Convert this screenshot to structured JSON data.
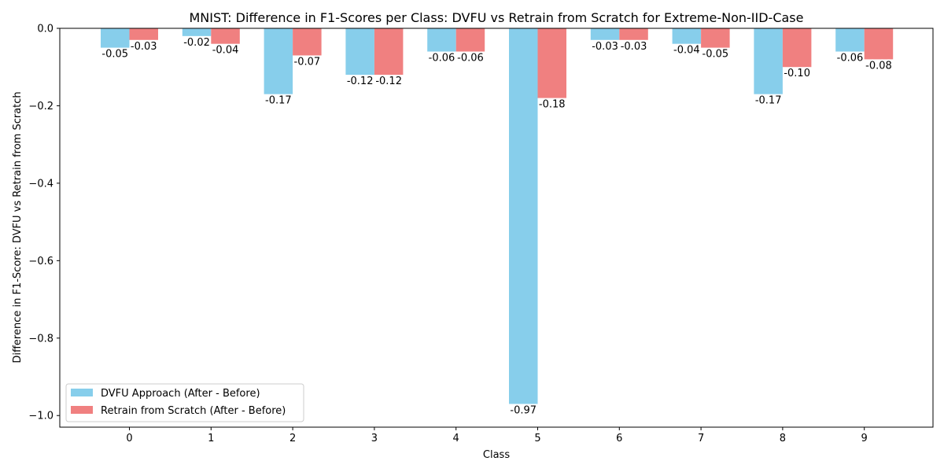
{
  "chart_data": {
    "type": "bar",
    "title": "MNIST: Difference in F1-Scores per Class: DVFU vs Retrain from Scratch for Extreme-Non-IID-Case",
    "xlabel": "Class",
    "ylabel": "Difference in F1-Score: DVFU vs Retrain from Scratch",
    "categories": [
      "0",
      "1",
      "2",
      "3",
      "4",
      "5",
      "6",
      "7",
      "8",
      "9"
    ],
    "ylim": [
      -1.03,
      0.0
    ],
    "yticks": [
      0.0,
      -0.2,
      -0.4,
      -0.6,
      -0.8,
      -1.0
    ],
    "ytick_labels": [
      "0.0",
      "−0.2",
      "−0.4",
      "−0.6",
      "−0.8",
      "−1.0"
    ],
    "grid": false,
    "legend_position": "lower-left",
    "series": [
      {
        "name": "DVFU Approach (After - Before)",
        "color": "#87ceeb",
        "values": [
          -0.05,
          -0.02,
          -0.17,
          -0.12,
          -0.06,
          -0.97,
          -0.03,
          -0.04,
          -0.17,
          -0.06
        ],
        "labels": [
          "-0.05",
          "-0.02",
          "-0.17",
          "-0.12",
          "-0.06",
          "-0.97",
          "-0.03",
          "-0.04",
          "-0.17",
          "-0.06"
        ]
      },
      {
        "name": "Retrain from Scratch (After - Before)",
        "color": "#f08080",
        "values": [
          -0.03,
          -0.04,
          -0.07,
          -0.12,
          -0.06,
          -0.18,
          -0.03,
          -0.05,
          -0.1,
          -0.08
        ],
        "labels": [
          "-0.03",
          "-0.04",
          "-0.07",
          "-0.12",
          "-0.06",
          "-0.18",
          "-0.03",
          "-0.05",
          "-0.10",
          "-0.08"
        ]
      }
    ]
  }
}
